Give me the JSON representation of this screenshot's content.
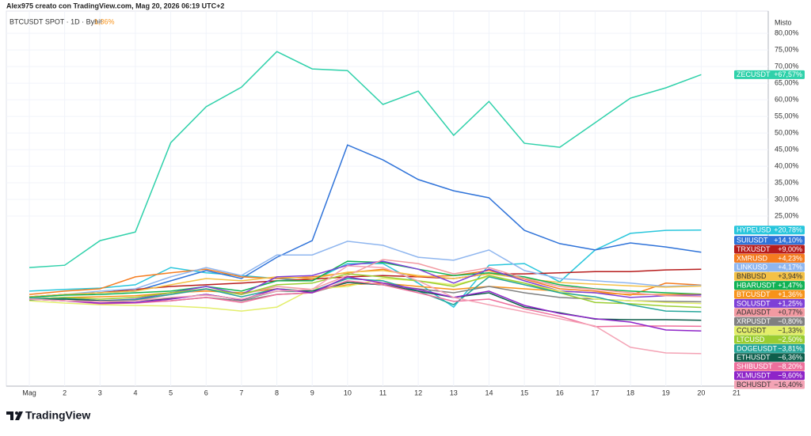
{
  "chart_data": {
    "type": "line",
    "credit": "Alex975 creato con TradingView.com, Mag 20, 2026 06:19 UTC+2",
    "symbol": "BTCUSDT SPOT · 1D · Bybit",
    "symbol_change": "1,36%",
    "axis_mode": "Misto",
    "logo": "TradingView",
    "categories": [
      "Mag",
      "2",
      "3",
      "4",
      "5",
      "6",
      "7",
      "8",
      "9",
      "10",
      "11",
      "12",
      "13",
      "14",
      "15",
      "16",
      "17",
      "18",
      "19",
      "20",
      "21"
    ],
    "ylim": [
      -26.2,
      86.7
    ],
    "yticks": [
      {
        "value": 25,
        "label": "25,00%"
      },
      {
        "value": 30,
        "label": "30,00%"
      },
      {
        "value": 35,
        "label": "35,00%"
      },
      {
        "value": 40,
        "label": "40,00%"
      },
      {
        "value": 45,
        "label": "45,00%"
      },
      {
        "value": 50,
        "label": "50,00%"
      },
      {
        "value": 55,
        "label": "55,00%"
      },
      {
        "value": 60,
        "label": "60,00%"
      },
      {
        "value": 65,
        "label": "65,00%"
      },
      {
        "value": 70,
        "label": "70,00%"
      },
      {
        "value": 75,
        "label": "75,00%"
      },
      {
        "value": 80,
        "label": "80,00%"
      }
    ],
    "grid": true,
    "series": [
      {
        "name": "ZECUSDT",
        "color": "#2fd1aa",
        "values": [
          9.5,
          10.2,
          17.6,
          20.2,
          47.1,
          57.9,
          63.8,
          74.5,
          69.3,
          68.8,
          58.6,
          62.6,
          49.3,
          59.5,
          46.9,
          45.7,
          53.1,
          60.5,
          63.6,
          67.57,
          null
        ],
        "value_labels": [
          null,
          null,
          null,
          null,
          null,
          null,
          null,
          null,
          null,
          null,
          null,
          null,
          null,
          null,
          null,
          null,
          null,
          null,
          null,
          "+67,57%",
          null
        ]
      },
      {
        "name": "HYPEUSD",
        "color": "#29c6dc",
        "values": [
          2.4,
          2.9,
          3.3,
          4.3,
          9.5,
          7.9,
          7.1,
          6.2,
          5.5,
          10.7,
          10.7,
          4.8,
          -2.4,
          10.2,
          10.7,
          5.2,
          14.8,
          19.8,
          20.7,
          20.78,
          null
        ],
        "value_labels": [
          null,
          null,
          null,
          null,
          null,
          null,
          null,
          null,
          null,
          null,
          null,
          null,
          null,
          null,
          null,
          null,
          null,
          null,
          null,
          "+20,78%",
          null
        ]
      },
      {
        "name": "SUIUSDT",
        "color": "#2f73d9",
        "values": [
          0.7,
          1.4,
          1.9,
          2.4,
          5.5,
          8.6,
          6.2,
          12.6,
          17.6,
          46.4,
          41.9,
          36,
          32.6,
          30.5,
          20.7,
          16.7,
          14.8,
          16.9,
          15.7,
          14.1,
          null
        ],
        "value_labels": [
          null,
          null,
          null,
          null,
          null,
          null,
          null,
          null,
          null,
          null,
          null,
          null,
          null,
          null,
          null,
          null,
          null,
          null,
          null,
          "+14,10%",
          null
        ]
      },
      {
        "name": "TRXUSDT",
        "color": "#b71c1c",
        "values": [
          0.7,
          1.4,
          1.9,
          2.9,
          3.8,
          4.3,
          4.8,
          5.5,
          6,
          6.7,
          7.1,
          6.7,
          6.2,
          7.6,
          7.6,
          7.9,
          8.3,
          8.3,
          8.8,
          9.0,
          null
        ],
        "value_labels": [
          null,
          null,
          null,
          null,
          null,
          null,
          null,
          null,
          null,
          null,
          null,
          null,
          null,
          null,
          null,
          null,
          null,
          null,
          null,
          "+9,00%",
          null
        ]
      },
      {
        "name": "XMRUSD",
        "color": "#f57c1f",
        "values": [
          1.4,
          2.4,
          3.1,
          6.7,
          7.9,
          9.0,
          6.7,
          6.2,
          6.7,
          7.9,
          9.0,
          6.7,
          7.1,
          8.6,
          6.0,
          3.1,
          2.4,
          1.2,
          4.8,
          4.23,
          null
        ],
        "value_labels": [
          null,
          null,
          null,
          null,
          null,
          null,
          null,
          null,
          null,
          null,
          null,
          null,
          null,
          null,
          null,
          null,
          null,
          null,
          null,
          "+4,23%",
          null
        ]
      },
      {
        "name": "LINKUSD",
        "color": "#8fb6ef",
        "values": [
          0.2,
          1.4,
          2.4,
          3.1,
          6.7,
          9.5,
          7.1,
          13.3,
          13.3,
          17.4,
          16.2,
          12.6,
          11.7,
          14.8,
          8.6,
          6.2,
          5.5,
          4.8,
          3.8,
          4.17,
          null
        ],
        "value_labels": [
          null,
          null,
          null,
          null,
          null,
          null,
          null,
          null,
          null,
          null,
          null,
          null,
          null,
          null,
          null,
          null,
          null,
          null,
          null,
          "+4,17%",
          null
        ]
      },
      {
        "name": "BNBUSD",
        "color": "#f4c146",
        "values": [
          0.7,
          1.4,
          1.9,
          2.4,
          4.3,
          6.2,
          5.5,
          6.7,
          6.2,
          8.1,
          8.6,
          7.1,
          6.2,
          7.6,
          6.2,
          5.0,
          4.5,
          4.0,
          3.6,
          3.94,
          null
        ],
        "value_labels": [
          null,
          null,
          null,
          null,
          null,
          null,
          null,
          null,
          null,
          null,
          null,
          null,
          null,
          null,
          null,
          null,
          null,
          null,
          null,
          "+3,94%",
          null
        ]
      },
      {
        "name": "HBARUSDT",
        "color": "#10b254",
        "values": [
          0.5,
          1.2,
          1.4,
          1.9,
          2.4,
          3.8,
          2.4,
          5.5,
          5.5,
          11.4,
          11,
          9,
          7.1,
          7.9,
          6.7,
          4.3,
          3.1,
          2.4,
          1.9,
          1.47,
          null
        ],
        "value_labels": [
          null,
          null,
          null,
          null,
          null,
          null,
          null,
          null,
          null,
          null,
          null,
          null,
          null,
          null,
          null,
          null,
          null,
          null,
          null,
          "+1,47%",
          null
        ]
      },
      {
        "name": "BTCUSDT",
        "color": "#f7931a",
        "values": [
          0,
          0.5,
          0.7,
          1,
          1.9,
          2.4,
          1.9,
          3.1,
          2.4,
          4.3,
          4.8,
          3.8,
          2.9,
          3.8,
          3.1,
          2.4,
          1.9,
          1.4,
          1.4,
          1.36,
          null
        ],
        "value_labels": [
          null,
          null,
          null,
          null,
          null,
          null,
          null,
          null,
          null,
          null,
          null,
          null,
          null,
          null,
          null,
          null,
          null,
          null,
          null,
          "+1,36%",
          null
        ]
      },
      {
        "name": "SOLUSDT",
        "color": "#7e40d6",
        "values": [
          0,
          0.5,
          -0.5,
          0,
          1.9,
          3.8,
          1.4,
          6.7,
          7.1,
          10.2,
          11.4,
          9,
          4.8,
          9,
          5.5,
          2.4,
          1.9,
          0.5,
          1,
          1.25,
          null
        ],
        "value_labels": [
          null,
          null,
          null,
          null,
          null,
          null,
          null,
          null,
          null,
          null,
          null,
          null,
          null,
          null,
          null,
          null,
          null,
          null,
          null,
          "+1,25%",
          null
        ]
      },
      {
        "name": "ADAUSDT",
        "color": "#f29aa2",
        "values": [
          0,
          0.2,
          -0.7,
          -0.5,
          1.4,
          2.9,
          1.4,
          3.8,
          2.9,
          7.1,
          11.9,
          10.7,
          7.6,
          9.5,
          6.2,
          3.8,
          2.9,
          1.9,
          1.0,
          0.77,
          null
        ],
        "value_labels": [
          null,
          null,
          null,
          null,
          null,
          null,
          null,
          null,
          null,
          null,
          null,
          null,
          null,
          null,
          null,
          null,
          null,
          null,
          null,
          "+0,77%",
          null
        ]
      },
      {
        "name": "XRPUSDT",
        "color": "#808080",
        "values": [
          0,
          -0.5,
          -0.7,
          -1,
          -0.5,
          0.5,
          -0.5,
          1.4,
          1.9,
          5,
          4.3,
          3.1,
          1.9,
          3.8,
          1.9,
          0.5,
          0,
          -0.5,
          -0.7,
          -0.8,
          null
        ],
        "value_labels": [
          null,
          null,
          null,
          null,
          null,
          null,
          null,
          null,
          null,
          null,
          null,
          null,
          null,
          null,
          null,
          null,
          null,
          null,
          null,
          "−0,80%",
          null
        ]
      },
      {
        "name": "CCUSDT",
        "color": "#e3ee6a",
        "values": [
          -0.5,
          -1.2,
          -1.7,
          -1.9,
          -2.1,
          -2.6,
          -3.6,
          -2.4,
          3.1,
          3.8,
          6.2,
          5.5,
          4.3,
          6.7,
          4.8,
          2.4,
          0,
          -0.5,
          -1,
          -1.33,
          null
        ],
        "value_labels": [
          null,
          null,
          null,
          null,
          null,
          null,
          null,
          null,
          null,
          null,
          null,
          null,
          null,
          null,
          null,
          null,
          null,
          null,
          null,
          "−1,33%",
          null
        ]
      },
      {
        "name": "LTCUSD",
        "color": "#9acd32",
        "values": [
          0,
          0.5,
          0,
          0.5,
          1.9,
          3.1,
          1.4,
          4.3,
          4.8,
          7.6,
          6.7,
          5.5,
          3.8,
          7.1,
          4.8,
          1.9,
          -1,
          -1.4,
          -2.1,
          -2.5,
          null
        ],
        "value_labels": [
          null,
          null,
          null,
          null,
          null,
          null,
          null,
          null,
          null,
          null,
          null,
          null,
          null,
          null,
          null,
          null,
          null,
          null,
          null,
          "−2,50%",
          null
        ]
      },
      {
        "name": "DOGEUSDT",
        "color": "#26a69a",
        "values": [
          0,
          0.2,
          -0.5,
          -0.2,
          1.4,
          3.1,
          0.7,
          3.1,
          2.4,
          6.2,
          5.5,
          2.4,
          -1.7,
          6.7,
          4.3,
          1.9,
          0.7,
          -1.7,
          -3.6,
          -3.81,
          null
        ],
        "value_labels": [
          null,
          null,
          null,
          null,
          null,
          null,
          null,
          null,
          null,
          null,
          null,
          null,
          null,
          null,
          null,
          null,
          null,
          null,
          null,
          "−3,81%",
          null
        ]
      },
      {
        "name": "ETHUSDT",
        "color": "#0e5e4c",
        "values": [
          -0.2,
          0,
          -0.5,
          -0.5,
          0.2,
          1.4,
          -0.2,
          2.4,
          2.4,
          5.0,
          4.3,
          2.4,
          0.5,
          1.9,
          -2.4,
          -4.1,
          -6.0,
          -6.2,
          -6.2,
          -6.36,
          null
        ],
        "value_labels": [
          null,
          null,
          null,
          null,
          null,
          null,
          null,
          null,
          null,
          null,
          null,
          null,
          null,
          null,
          null,
          null,
          null,
          null,
          null,
          "−6,36%",
          null
        ]
      },
      {
        "name": "SHIBUSDT",
        "color": "#ee6f9c",
        "values": [
          0,
          -0.5,
          -1.4,
          -1.2,
          -0.5,
          0.5,
          -1,
          1.4,
          1.9,
          5.5,
          4.3,
          1.9,
          -0.7,
          0,
          -2.9,
          -5.2,
          -8.3,
          -8.1,
          -8.1,
          -8.2,
          null
        ],
        "value_labels": [
          null,
          null,
          null,
          null,
          null,
          null,
          null,
          null,
          null,
          null,
          null,
          null,
          null,
          null,
          null,
          null,
          null,
          null,
          null,
          "−8,20%",
          null
        ]
      },
      {
        "name": "XLMUSDT",
        "color": "#8e24c8",
        "values": [
          0,
          -0.5,
          -1.2,
          -1,
          0,
          1.4,
          -0.2,
          3.1,
          1.9,
          6.7,
          4.8,
          2.9,
          0.5,
          2.4,
          -1.9,
          -4.3,
          -5.9,
          -6.9,
          -9.3,
          -9.6,
          null
        ],
        "value_labels": [
          null,
          null,
          null,
          null,
          null,
          null,
          null,
          null,
          null,
          null,
          null,
          null,
          null,
          null,
          null,
          null,
          null,
          null,
          null,
          "−9,60%",
          null
        ]
      },
      {
        "name": "BCHUSDT",
        "color": "#f4a3b5",
        "values": [
          0,
          -0.5,
          -0.7,
          -0.5,
          0.5,
          1.2,
          0,
          2.4,
          2.9,
          10,
          9.5,
          5.5,
          0.5,
          -1.7,
          -3.8,
          -5.9,
          -8.1,
          -14.5,
          -16.2,
          -16.4,
          null
        ],
        "value_labels": [
          null,
          null,
          null,
          null,
          null,
          null,
          null,
          null,
          null,
          null,
          null,
          null,
          null,
          null,
          null,
          null,
          null,
          null,
          null,
          "−16,40%",
          null
        ]
      }
    ]
  }
}
